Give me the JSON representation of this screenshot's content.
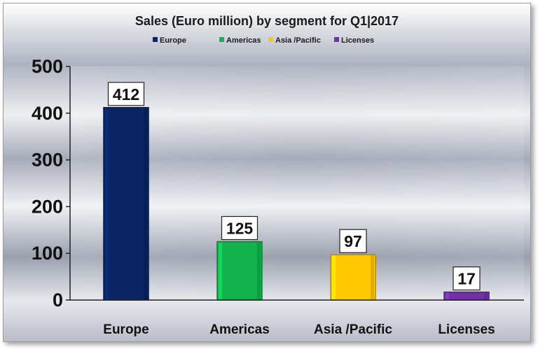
{
  "chart_data": {
    "type": "bar",
    "title": "Sales (Euro million) by segment for Q1|2017",
    "categories": [
      "Europe",
      "Americas",
      "Asia /Pacific",
      "Licenses"
    ],
    "values": [
      412,
      125,
      97,
      17
    ],
    "series": [
      {
        "name": "Europe",
        "color": "#0b2464"
      },
      {
        "name": "Americas",
        "color": "#12b24d"
      },
      {
        "name": "Asia /Pacific",
        "color": "#ffc800"
      },
      {
        "name": "Licenses",
        "color": "#7330a8"
      }
    ],
    "ylim": [
      0,
      500
    ],
    "yticks": [
      0,
      100,
      200,
      300,
      400,
      500
    ],
    "legend_position": "top",
    "grid": false
  }
}
